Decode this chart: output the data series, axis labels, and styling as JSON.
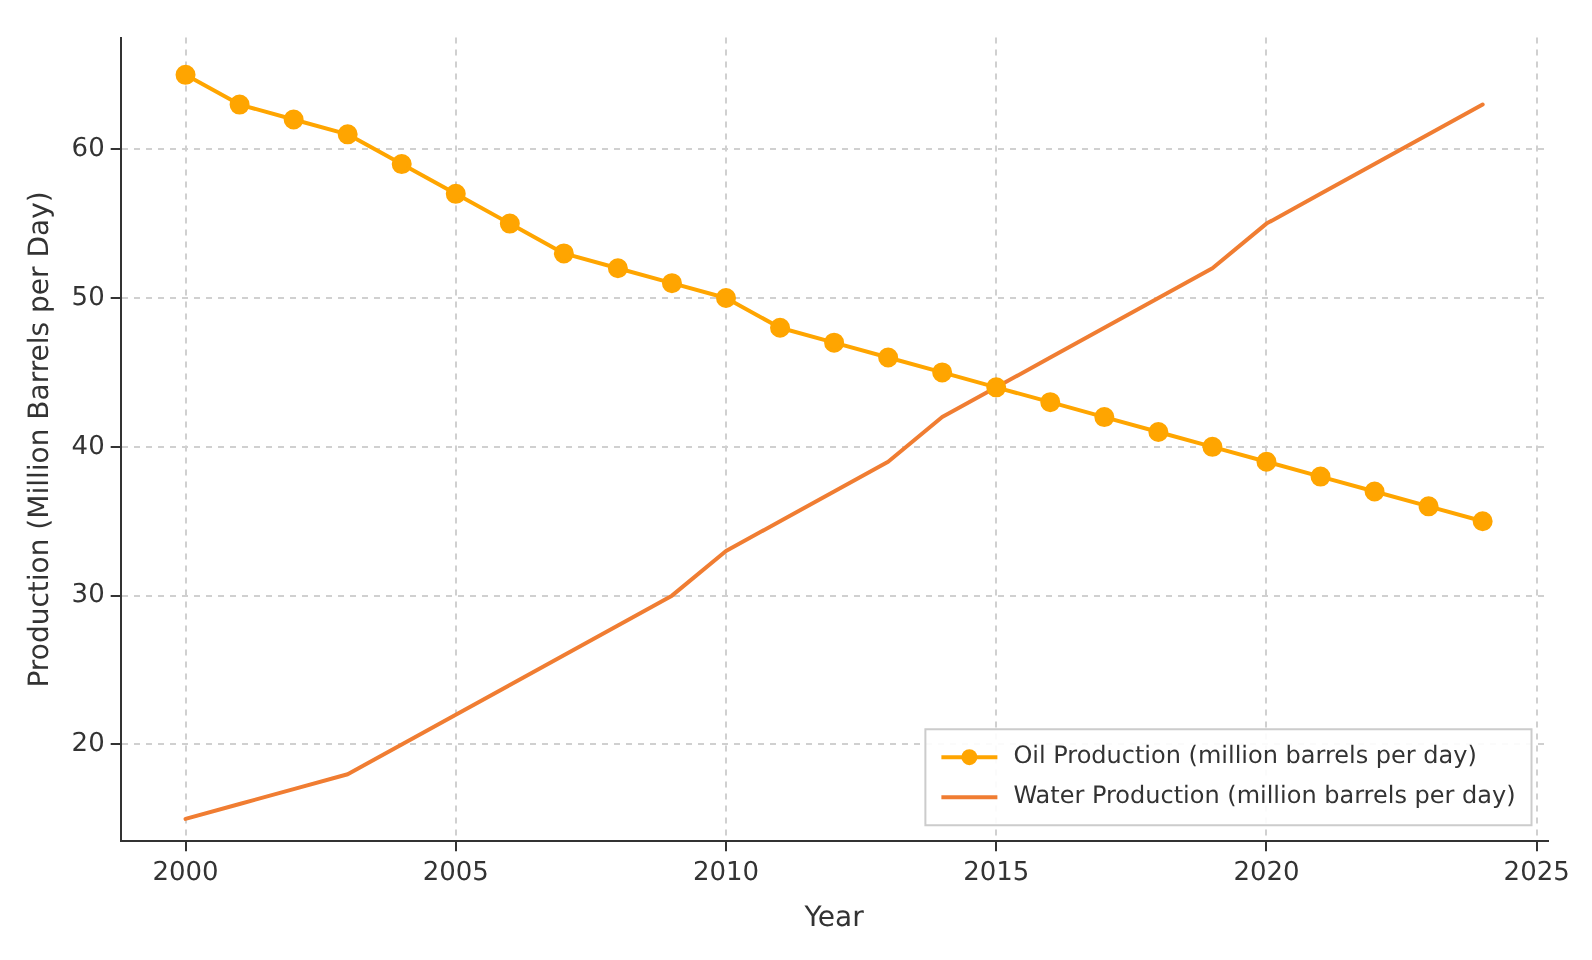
{
  "chart_data": {
    "type": "line",
    "xlabel": "Year",
    "ylabel": "Production (Million Barrels per Day)",
    "x": [
      2000,
      2001,
      2002,
      2003,
      2004,
      2005,
      2006,
      2007,
      2008,
      2009,
      2010,
      2011,
      2012,
      2013,
      2014,
      2015,
      2016,
      2017,
      2018,
      2019,
      2020,
      2021,
      2022,
      2023,
      2024
    ],
    "series": [
      {
        "name": "Oil Production (million barrels per day)",
        "color": "#ffa500",
        "marker": "circle",
        "values": [
          65,
          63,
          62,
          61,
          59,
          57,
          55,
          53,
          52,
          51,
          50,
          48,
          47,
          46,
          45,
          44,
          43,
          42,
          41,
          40,
          39,
          38,
          37,
          36,
          35
        ]
      },
      {
        "name": "Water Production (million barrels per day)",
        "color": "#f07d32",
        "marker": "none",
        "values": [
          15,
          16,
          17,
          18,
          20,
          22,
          24,
          26,
          28,
          30,
          33,
          35,
          37,
          39,
          42,
          44,
          46,
          48,
          50,
          52,
          55,
          57,
          59,
          61,
          63
        ]
      }
    ],
    "xlim": [
      1998.8,
      2025.2
    ],
    "xticks": [
      2000,
      2005,
      2010,
      2015,
      2020,
      2025
    ],
    "ylim": [
      13.5,
      67.5
    ],
    "yticks": [
      20,
      30,
      40,
      50,
      60
    ],
    "grid": true,
    "legend": "bottom right",
    "line_style": "solid"
  }
}
